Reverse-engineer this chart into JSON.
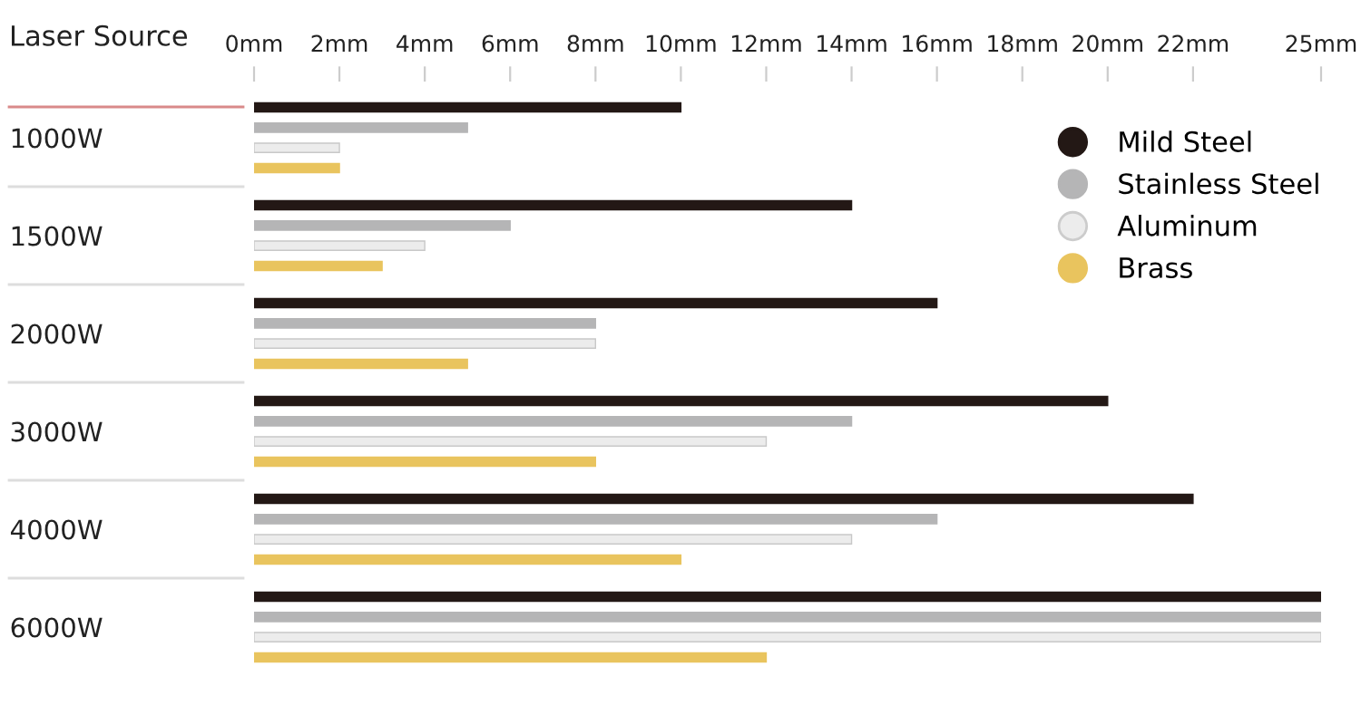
{
  "chart_data": {
    "type": "bar",
    "orientation": "horizontal",
    "ylabel": "Laser Source",
    "categories": [
      "1000W",
      "1500W",
      "2000W",
      "3000W",
      "4000W",
      "6000W"
    ],
    "series": [
      {
        "name": "Mild Steel",
        "color": "#231815",
        "values": [
          10,
          14,
          16,
          20,
          22,
          25
        ]
      },
      {
        "name": "Stainless Steel",
        "color": "#b5b5b6",
        "values": [
          5,
          6,
          8,
          14,
          16,
          25
        ]
      },
      {
        "name": "Aluminum",
        "color": "#ececec",
        "values": [
          2,
          4,
          8,
          12,
          14,
          25
        ]
      },
      {
        "name": "Brass",
        "color": "#e9c45e",
        "values": [
          2,
          3,
          5,
          8,
          10,
          12
        ]
      }
    ],
    "xlim": [
      0,
      25
    ],
    "xticks": [
      {
        "value": 0,
        "label": "0mm"
      },
      {
        "value": 2,
        "label": "2mm"
      },
      {
        "value": 4,
        "label": "4mm"
      },
      {
        "value": 6,
        "label": "6mm"
      },
      {
        "value": 8,
        "label": "8mm"
      },
      {
        "value": 10,
        "label": "10mm"
      },
      {
        "value": 12,
        "label": "12mm"
      },
      {
        "value": 14,
        "label": "14mm"
      },
      {
        "value": 16,
        "label": "16mm"
      },
      {
        "value": 18,
        "label": "18mm"
      },
      {
        "value": 20,
        "label": "20mm"
      },
      {
        "value": 22,
        "label": "22mm"
      },
      {
        "value": 25,
        "label": "25mm"
      }
    ],
    "legend": "right",
    "grid": false
  }
}
